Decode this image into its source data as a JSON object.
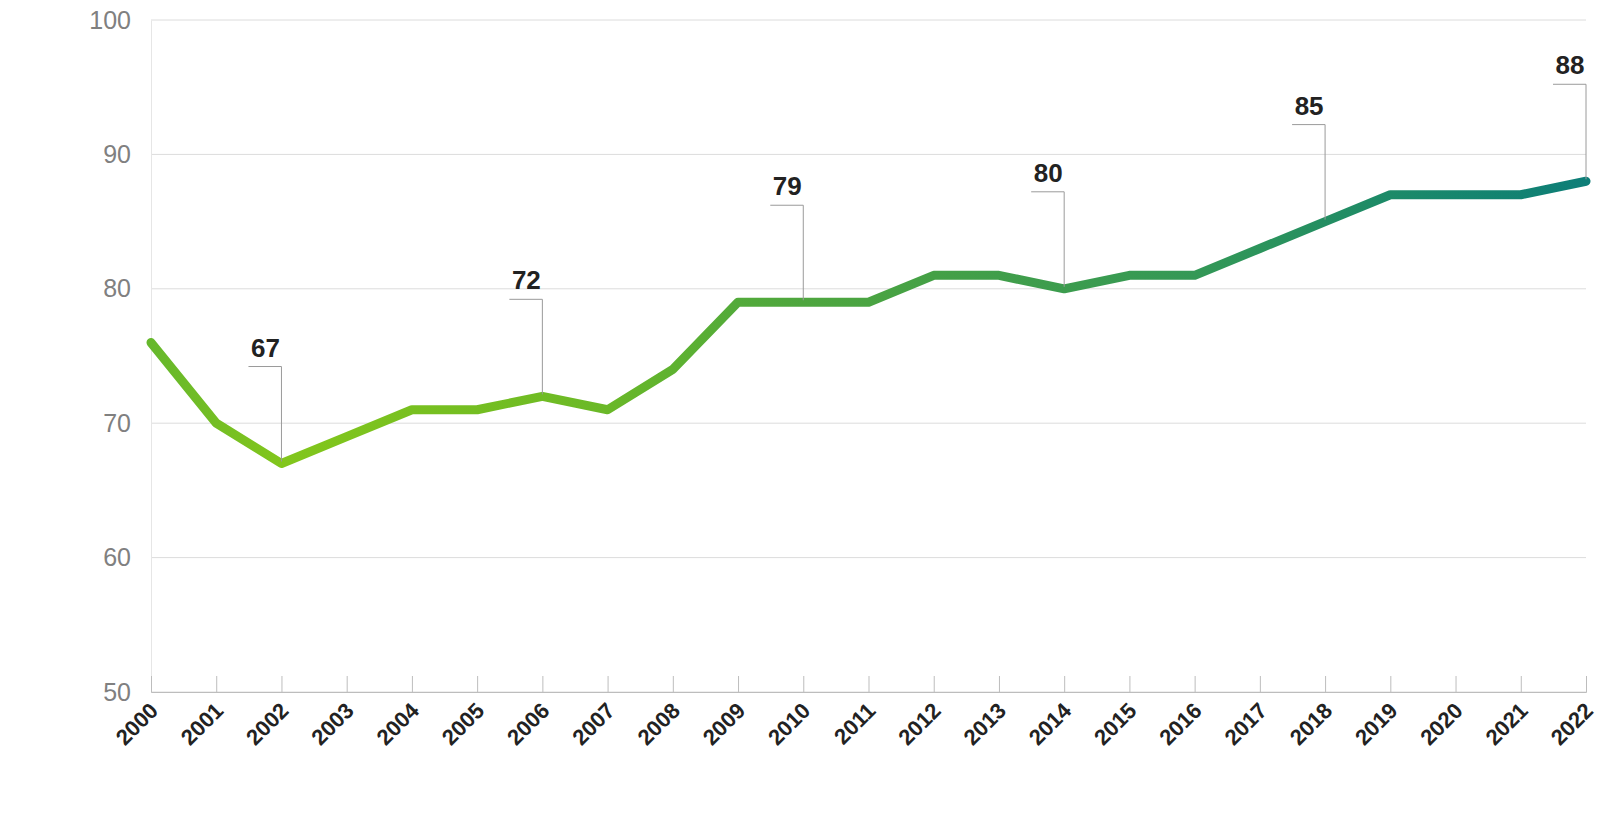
{
  "chart_data": {
    "type": "line",
    "x": [
      2000,
      2001,
      2002,
      2003,
      2004,
      2005,
      2006,
      2007,
      2008,
      2009,
      2010,
      2011,
      2012,
      2013,
      2014,
      2015,
      2016,
      2017,
      2018,
      2019,
      2020,
      2021,
      2022
    ],
    "series": [
      {
        "values": [
          76,
          70,
          67,
          69,
          71,
          71,
          72,
          71,
          74,
          79,
          79,
          79,
          81,
          81,
          80,
          81,
          81,
          83,
          85,
          87,
          87,
          87,
          88
        ],
        "value_labels": [
          null,
          null,
          "67",
          null,
          null,
          null,
          "72",
          null,
          null,
          null,
          "79",
          null,
          null,
          null,
          "80",
          null,
          null,
          null,
          "85",
          null,
          null,
          null,
          "88"
        ],
        "colors": [
          "#66b82c",
          "#74be24",
          "#82c61c",
          "#7ec41e",
          "#78c020",
          "#74be22",
          "#70bc24",
          "#6ab828",
          "#5eb230",
          "#52aa3a",
          "#4ea63e",
          "#4aa442",
          "#44a046",
          "#409e4a",
          "#3c9c4e",
          "#389a52",
          "#349856",
          "#2c945c",
          "#248e62",
          "#1c8a68",
          "#16866e",
          "#128272",
          "#0e7e78"
        ]
      }
    ],
    "xlim": [
      2000,
      2022
    ],
    "xticks": [
      2000,
      2001,
      2002,
      2003,
      2004,
      2005,
      2006,
      2007,
      2008,
      2009,
      2010,
      2011,
      2012,
      2013,
      2014,
      2015,
      2016,
      2017,
      2018,
      2019,
      2020,
      2021,
      2022
    ],
    "ylim": [
      50,
      100
    ],
    "yticks": [
      50,
      60,
      70,
      80,
      90,
      100
    ],
    "grid": true,
    "data_labels": true,
    "line_style": "solid"
  }
}
